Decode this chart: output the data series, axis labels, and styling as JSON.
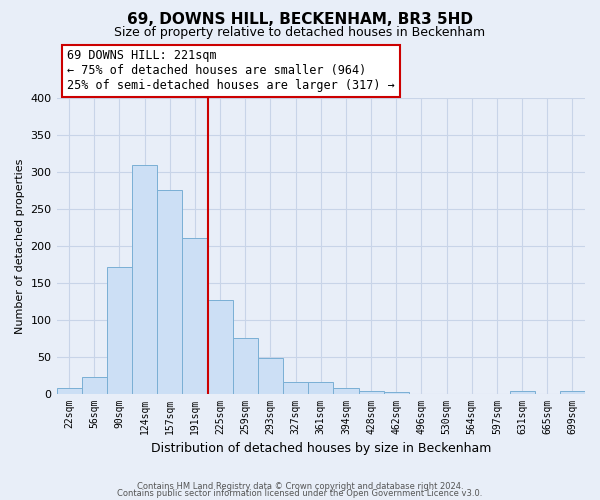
{
  "title": "69, DOWNS HILL, BECKENHAM, BR3 5HD",
  "subtitle": "Size of property relative to detached houses in Beckenham",
  "xlabel": "Distribution of detached houses by size in Beckenham",
  "ylabel": "Number of detached properties",
  "bin_labels": [
    "22sqm",
    "56sqm",
    "90sqm",
    "124sqm",
    "157sqm",
    "191sqm",
    "225sqm",
    "259sqm",
    "293sqm",
    "327sqm",
    "361sqm",
    "394sqm",
    "428sqm",
    "462sqm",
    "496sqm",
    "530sqm",
    "564sqm",
    "597sqm",
    "631sqm",
    "665sqm",
    "699sqm"
  ],
  "bar_heights": [
    8,
    22,
    172,
    310,
    275,
    210,
    127,
    75,
    48,
    16,
    16,
    8,
    4,
    2,
    0,
    0,
    0,
    0,
    3,
    0,
    4
  ],
  "bar_color": "#ccdff5",
  "bar_edge_color": "#7aafd4",
  "vline_color": "#cc0000",
  "annotation_text": "69 DOWNS HILL: 221sqm\n← 75% of detached houses are smaller (964)\n25% of semi-detached houses are larger (317) →",
  "annotation_box_color": "white",
  "annotation_box_edge": "#cc0000",
  "ylim": [
    0,
    400
  ],
  "yticks": [
    0,
    50,
    100,
    150,
    200,
    250,
    300,
    350,
    400
  ],
  "footer1": "Contains HM Land Registry data © Crown copyright and database right 2024.",
  "footer2": "Contains public sector information licensed under the Open Government Licence v3.0.",
  "bg_color": "#e8eef8",
  "grid_color": "#c8d4e8"
}
